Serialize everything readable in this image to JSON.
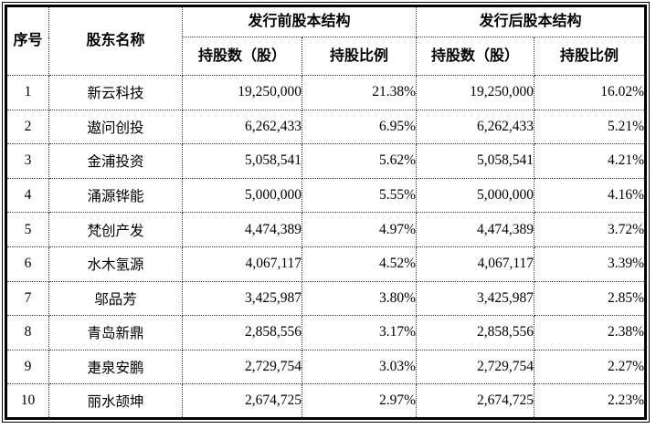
{
  "table": {
    "header": {
      "seq_label": "序号",
      "name_label": "股东名称",
      "pre_group_label": "发行前股本结构",
      "post_group_label": "发行后股本结构",
      "pre_shares_label": "持股数（股）",
      "pre_ratio_label": "持股比例",
      "post_shares_label": "持股数（股）",
      "post_ratio_label": "持股比例"
    },
    "rows": [
      {
        "index": "1",
        "name": "新云科技",
        "pre_shares": "19,250,000",
        "pre_ratio": "21.38%",
        "post_shares": "19,250,000",
        "post_ratio": "16.02%"
      },
      {
        "index": "2",
        "name": "遨问创投",
        "pre_shares": "6,262,433",
        "pre_ratio": "6.95%",
        "post_shares": "6,262,433",
        "post_ratio": "5.21%"
      },
      {
        "index": "3",
        "name": "金浦投资",
        "pre_shares": "5,058,541",
        "pre_ratio": "5.62%",
        "post_shares": "5,058,541",
        "post_ratio": "4.21%"
      },
      {
        "index": "4",
        "name": "涌源铧能",
        "pre_shares": "5,000,000",
        "pre_ratio": "5.55%",
        "post_shares": "5,000,000",
        "post_ratio": "4.16%"
      },
      {
        "index": "5",
        "name": "梵创产发",
        "pre_shares": "4,474,389",
        "pre_ratio": "4.97%",
        "post_shares": "4,474,389",
        "post_ratio": "3.72%"
      },
      {
        "index": "6",
        "name": "水木氢源",
        "pre_shares": "4,067,117",
        "pre_ratio": "4.52%",
        "post_shares": "4,067,117",
        "post_ratio": "3.39%"
      },
      {
        "index": "7",
        "name": "邬品芳",
        "pre_shares": "3,425,987",
        "pre_ratio": "3.80%",
        "post_shares": "3,425,987",
        "post_ratio": "2.85%"
      },
      {
        "index": "8",
        "name": "青岛新鼎",
        "pre_shares": "2,858,556",
        "pre_ratio": "3.17%",
        "post_shares": "2,858,556",
        "post_ratio": "2.38%"
      },
      {
        "index": "9",
        "name": "疌泉安鹏",
        "pre_shares": "2,729,754",
        "pre_ratio": "3.03%",
        "post_shares": "2,729,754",
        "post_ratio": "2.27%"
      },
      {
        "index": "10",
        "name": "丽水颉坤",
        "pre_shares": "2,674,725",
        "pre_ratio": "2.97%",
        "post_shares": "2,674,725",
        "post_ratio": "2.23%"
      }
    ]
  },
  "chart_data": {
    "type": "table",
    "title": "",
    "columns": [
      "序号",
      "股东名称",
      "发行前股本结构-持股数（股）",
      "发行前股本结构-持股比例",
      "发行后股本结构-持股数（股）",
      "发行后股本结构-持股比例"
    ],
    "rows": [
      [
        "1",
        "新云科技",
        "19,250,000",
        "21.38%",
        "19,250,000",
        "16.02%"
      ],
      [
        "2",
        "遨问创投",
        "6,262,433",
        "6.95%",
        "6,262,433",
        "5.21%"
      ],
      [
        "3",
        "金浦投资",
        "5,058,541",
        "5.62%",
        "5,058,541",
        "4.21%"
      ],
      [
        "4",
        "涌源铧能",
        "5,000,000",
        "5.55%",
        "5,000,000",
        "4.16%"
      ],
      [
        "5",
        "梵创产发",
        "4,474,389",
        "4.97%",
        "4,474,389",
        "3.72%"
      ],
      [
        "6",
        "水木氢源",
        "4,067,117",
        "4.52%",
        "4,067,117",
        "3.39%"
      ],
      [
        "7",
        "邬品芳",
        "3,425,987",
        "3.80%",
        "3,425,987",
        "2.85%"
      ],
      [
        "8",
        "青岛新鼎",
        "2,858,556",
        "3.17%",
        "2,858,556",
        "2.38%"
      ],
      [
        "9",
        "疌泉安鹏",
        "2,729,754",
        "3.03%",
        "2,729,754",
        "2.27%"
      ],
      [
        "10",
        "丽水颉坤",
        "2,674,725",
        "2.97%",
        "2,674,725",
        "2.23%"
      ]
    ]
  }
}
